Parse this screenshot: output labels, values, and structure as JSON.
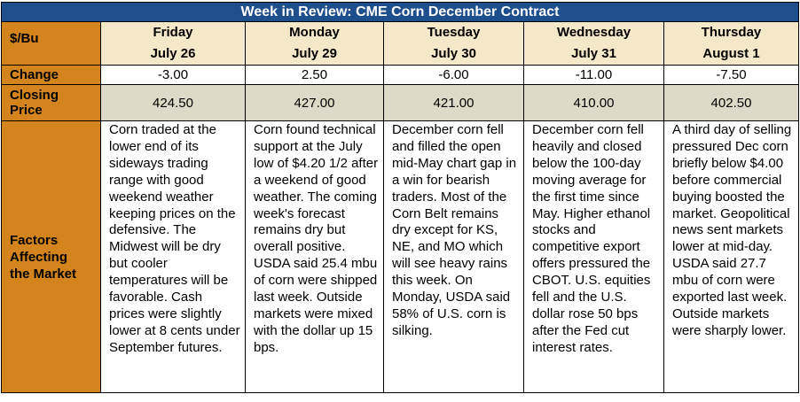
{
  "title": "Week in Review: CME Corn December Contract",
  "header_label": "$/Bu",
  "days": [
    {
      "day": "Friday",
      "date": "July 26",
      "change": "-3.00",
      "close": "424.50",
      "factors": "Corn traded at the lower end of its sideways trading range with good weekend weather keeping prices on the defensive. The Midwest will be dry but cooler temperatures will be favorable. Cash prices were slightly lower at 8 cents under September futures."
    },
    {
      "day": "Monday",
      "date": "July 29",
      "change": "2.50",
      "close": "427.00",
      "factors": "Corn found technical support at the July low of $4.20 1/2 after a weekend of good weather. The coming week's forecast remains dry but overall positive. USDA said 25.4 mbu of corn were shipped last week. Outside markets were mixed with the dollar up 15 bps."
    },
    {
      "day": "Tuesday",
      "date": "July 30",
      "change": "-6.00",
      "close": "421.00",
      "factors": "December corn fell and filled the open mid-May chart gap in a win for bearish traders. Most of the Corn Belt remains dry except for KS, NE, and MO which will see heavy rains this week. On Monday, USDA said 58% of U.S. corn is silking."
    },
    {
      "day": "Wednesday",
      "date": "July 31",
      "change": "-11.00",
      "close": "410.00",
      "factors": "December corn fell heavily and closed below the 100-day moving average for the first time since May. Higher ethanol stocks and competitive export offers pressured the CBOT. U.S. equities fell and the U.S. dollar rose 50 bps after the Fed cut interest rates."
    },
    {
      "day": "Thursday",
      "date": "August 1",
      "change": "-7.50",
      "close": "402.50",
      "factors": "A third day of selling pressured Dec corn briefly below $4.00 before commercial buying boosted the market. Geopolitical news sent markets lower at mid-day. USDA said 27.7 mbu of corn were exported last week. Outside markets were sharply lower."
    }
  ],
  "row_labels": {
    "change": "Change",
    "closing_line1": "Closing",
    "closing_line2": "Price",
    "factors_line1": "Factors",
    "factors_line2": "Affecting",
    "factors_line3": "the Market"
  },
  "colors": {
    "title_bg": "#1f4e8c",
    "label_bg": "#d4841c",
    "day_bg": "#f5e8c8",
    "close_bg": "#dddbc8"
  }
}
